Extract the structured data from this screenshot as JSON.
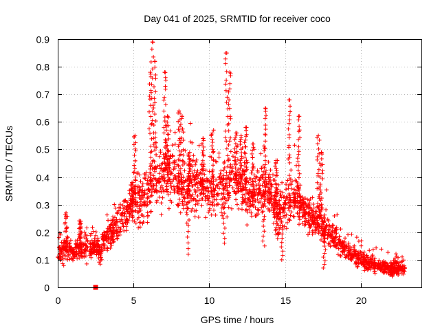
{
  "chart_data": {
    "type": "scatter",
    "title": "Day 041 of 2025, SRMTID for receiver coco",
    "xlabel": "GPS time / hours",
    "ylabel": "SRMTID / TECUs",
    "xlim": [
      0,
      24
    ],
    "ylim": [
      0,
      0.9
    ],
    "xticks": [
      0,
      5,
      10,
      15,
      20
    ],
    "yticks": [
      0,
      0.1,
      0.2,
      0.3,
      0.4,
      0.5,
      0.6,
      0.7,
      0.8,
      0.9
    ],
    "grid": true,
    "marker": "plus",
    "color": "#ff0000",
    "series": [
      {
        "name": "SRMTID",
        "profile_x": [
          0,
          0.5,
          1,
          1.5,
          2,
          2.5,
          2.8,
          3,
          3.5,
          4,
          4.5,
          5,
          5.5,
          6,
          6.5,
          7,
          7.5,
          8,
          8.5,
          9,
          9.5,
          10,
          10.5,
          11,
          11.5,
          12,
          12.5,
          13,
          13.5,
          14,
          14.5,
          15,
          15.5,
          16,
          16.5,
          17,
          17.5,
          18,
          18.5,
          19,
          19.5,
          20,
          20.5,
          21,
          21.5,
          22,
          22.5,
          23
        ],
        "profile_y": [
          0.12,
          0.13,
          0.13,
          0.14,
          0.14,
          0.15,
          0.12,
          0.17,
          0.2,
          0.22,
          0.26,
          0.3,
          0.3,
          0.34,
          0.38,
          0.42,
          0.4,
          0.36,
          0.34,
          0.38,
          0.36,
          0.34,
          0.33,
          0.36,
          0.38,
          0.37,
          0.34,
          0.32,
          0.35,
          0.34,
          0.26,
          0.28,
          0.32,
          0.3,
          0.26,
          0.24,
          0.22,
          0.2,
          0.16,
          0.13,
          0.12,
          0.1,
          0.09,
          0.08,
          0.07,
          0.07,
          0.07,
          0.06
        ],
        "spread": [
          0.04,
          0.05,
          0.04,
          0.05,
          0.05,
          0.05,
          0.04,
          0.05,
          0.06,
          0.07,
          0.08,
          0.09,
          0.1,
          0.12,
          0.13,
          0.12,
          0.12,
          0.12,
          0.11,
          0.11,
          0.11,
          0.11,
          0.12,
          0.12,
          0.11,
          0.11,
          0.1,
          0.1,
          0.1,
          0.09,
          0.09,
          0.1,
          0.09,
          0.09,
          0.09,
          0.08,
          0.07,
          0.06,
          0.05,
          0.04,
          0.04,
          0.04,
          0.03,
          0.03,
          0.03,
          0.03,
          0.03,
          0.02
        ],
        "peaks": [
          [
            0.55,
            0.27
          ],
          [
            1.5,
            0.24
          ],
          [
            4.9,
            0.38
          ],
          [
            5.1,
            0.55
          ],
          [
            6.1,
            0.78
          ],
          [
            6.25,
            0.89
          ],
          [
            6.4,
            0.82
          ],
          [
            7.05,
            0.78
          ],
          [
            7.25,
            0.62
          ],
          [
            8.0,
            0.64
          ],
          [
            8.2,
            0.62
          ],
          [
            8.7,
            0.49
          ],
          [
            9.6,
            0.54
          ],
          [
            10.2,
            0.56
          ],
          [
            11.15,
            0.85
          ],
          [
            11.35,
            0.78
          ],
          [
            11.75,
            0.56
          ],
          [
            12.1,
            0.55
          ],
          [
            12.4,
            0.58
          ],
          [
            12.9,
            0.52
          ],
          [
            13.7,
            0.65
          ],
          [
            14.4,
            0.46
          ],
          [
            15.3,
            0.68
          ],
          [
            15.9,
            0.62
          ],
          [
            17.2,
            0.55
          ],
          [
            17.4,
            0.49
          ]
        ],
        "dips": [
          [
            8.6,
            0.12
          ],
          [
            11.0,
            0.16
          ],
          [
            13.6,
            0.15
          ],
          [
            14.8,
            0.1
          ],
          [
            17.6,
            0.07
          ],
          [
            22.0,
            0.04
          ]
        ],
        "n_points": 2300,
        "x_end": 22.95
      },
      {
        "name": "marker",
        "x": [
          2.5
        ],
        "y": [
          0.0
        ],
        "marker": "square"
      }
    ]
  }
}
